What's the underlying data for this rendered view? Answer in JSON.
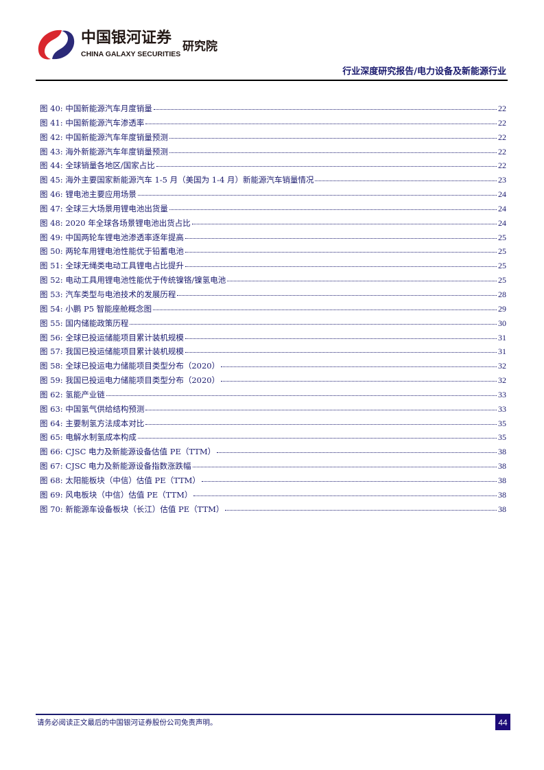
{
  "header": {
    "brand_cn": "中国银河证券",
    "brand_en": "CHINA GALAXY SECURITIES",
    "institute": "研究院",
    "report_type": "行业深度研究报告/电力设备及新能源行业",
    "logo_colors": {
      "red": "#d9272e",
      "navy": "#2b2a78"
    }
  },
  "toc": [
    {
      "label": "图 40:  中国新能源汽车月度销量",
      "page": "22"
    },
    {
      "label": "图 41:  中国新能源汽车渗透率",
      "page": "22"
    },
    {
      "label": "图 42:  中国新能源汽车年度销量预测",
      "page": "22"
    },
    {
      "label": "图 43:  海外新能源汽车年度销量预测",
      "page": "22"
    },
    {
      "label": "图 44:  全球销量各地区/国家占比",
      "page": "22"
    },
    {
      "label": "图 45:  海外主要国家新能源汽车 1-5 月（美国为 1-4 月）新能源汽车销量情况",
      "page": "23"
    },
    {
      "label": "图 46:  锂电池主要应用场景",
      "page": "24"
    },
    {
      "label": "图 47:  全球三大场景用锂电池出货量",
      "page": "24"
    },
    {
      "label": "图 48:  2020 年全球各场景锂电池出货占比",
      "page": "24"
    },
    {
      "label": "图 49:  中国两轮车锂电池渗透率逐年提高",
      "page": "25"
    },
    {
      "label": "图 50:  两轮车用锂电池性能优于铅蓄电池",
      "page": "25"
    },
    {
      "label": "图 51:  全球无绳类电动工具锂电占比提升",
      "page": "25"
    },
    {
      "label": "图 52:  电动工具用锂电池性能优于传统镍铬/镍氢电池",
      "page": "25"
    },
    {
      "label": "图 53: 汽车类型与电池技术的发展历程",
      "page": "28"
    },
    {
      "label": "图 54:  小鹏 P5 智能座舱概念图",
      "page": "29"
    },
    {
      "label": "图 55:  国内储能政策历程",
      "page": "30"
    },
    {
      "label": "图 56:  全球已投运储能项目累计装机规模",
      "page": "31"
    },
    {
      "label": "图 57:  我国已投运储能项目累计装机规模",
      "page": "31"
    },
    {
      "label": "图 58:  全球已投运电力储能项目类型分布（2020）",
      "page": "32"
    },
    {
      "label": "图 59:  我国已投运电力储能项目类型分布（2020）",
      "page": "32"
    },
    {
      "label": "图 62:  氢能产业链",
      "page": "33"
    },
    {
      "label": "图 63:  中国氢气供给结构预测",
      "page": "33"
    },
    {
      "label": "图 64:  主要制氢方法成本对比",
      "page": "35"
    },
    {
      "label": "图 65:  电解水制氢成本构成",
      "page": "35"
    },
    {
      "label": "图 66:  CJSC 电力及新能源设备估值 PE（TTM）",
      "page": "38"
    },
    {
      "label": "图 67:  CJSC 电力及新能源设备指数涨跌幅",
      "page": "38"
    },
    {
      "label": "图 68:  太阳能板块（中信）估值 PE（TTM）",
      "page": "38"
    },
    {
      "label": "图 69:  风电板块（中信）估值 PE（TTM）",
      "page": "38"
    },
    {
      "label": "图 70:  新能源车设备板块（长江）估值 PE（TTM）",
      "page": "38"
    }
  ],
  "footer": {
    "disclaimer": "请务必阅读正文最后的中国银河证券股份公司免责声明。",
    "page_number": "44",
    "accent": "#1c0a78"
  }
}
